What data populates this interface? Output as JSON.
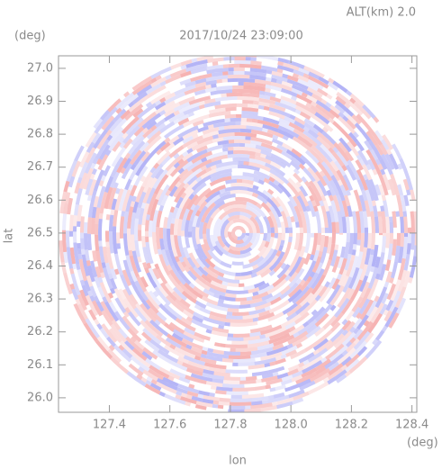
{
  "chart_data": {
    "type": "radar-ppi",
    "title": "2017/10/24 23:09:00",
    "subtitle": "ALT(km) 2.0",
    "x_label": "lon",
    "x_unit": "(deg)",
    "y_label": "lat",
    "y_unit": "(deg)",
    "xlim": [
      127.232,
      128.416
    ],
    "ylim": [
      25.956,
      27.038
    ],
    "xticks": [
      127.4,
      127.6,
      127.8,
      {
        "value": 128.0,
        "label": "128.0"
      },
      128.2,
      128.4
    ],
    "yticks": [
      {
        "value": 26.0,
        "label": "26.0"
      },
      26.1,
      26.2,
      26.3,
      26.4,
      26.5,
      26.6,
      26.7,
      26.8,
      26.9,
      {
        "value": 27.0,
        "label": "27.0"
      }
    ],
    "center": [
      127.827,
      26.5
    ],
    "colors": [
      "#f08080",
      "#8080f0"
    ]
  }
}
